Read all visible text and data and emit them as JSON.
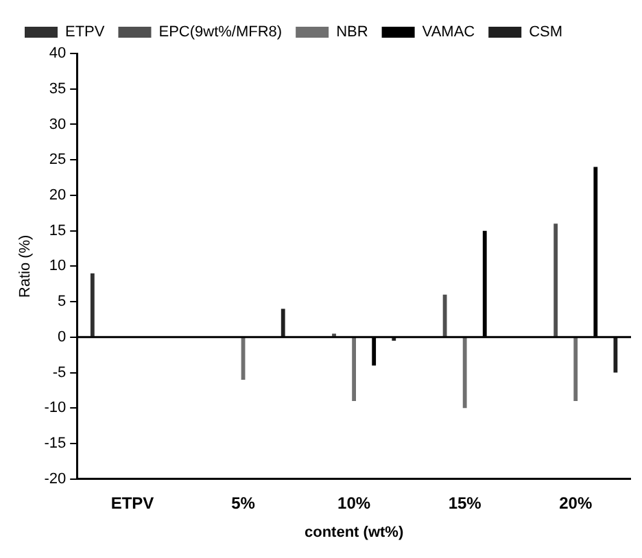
{
  "chart_data": {
    "type": "bar",
    "xlabel": "content (wt%)",
    "ylabel": "Ratio (%)",
    "categories": [
      "ETPV",
      "5%",
      "10%",
      "15%",
      "20%"
    ],
    "series": [
      {
        "name": "ETPV",
        "color": "#303030",
        "values": [
          9,
          null,
          null,
          null,
          null
        ]
      },
      {
        "name": "EPC(9wt%/MFR8)",
        "color": "#505050",
        "values": [
          null,
          null,
          0.5,
          6,
          16
        ]
      },
      {
        "name": "NBR",
        "color": "#707070",
        "values": [
          null,
          -6,
          -9,
          -10,
          -9
        ]
      },
      {
        "name": "VAMAC",
        "color": "#000000",
        "values": [
          null,
          null,
          -4,
          15,
          24
        ]
      },
      {
        "name": "CSM",
        "color": "#202020",
        "values": [
          null,
          4,
          -0.5,
          null,
          -5
        ]
      }
    ],
    "ylim": [
      -20,
      40
    ],
    "yticks": [
      -20,
      -15,
      -10,
      -5,
      0,
      5,
      10,
      15,
      20,
      25,
      30,
      35,
      40
    ],
    "ref_lines": [
      {
        "axis": "y",
        "value": 0,
        "color": "#000000",
        "line_style": "solid"
      }
    ],
    "grid": false,
    "legend": "top left"
  }
}
